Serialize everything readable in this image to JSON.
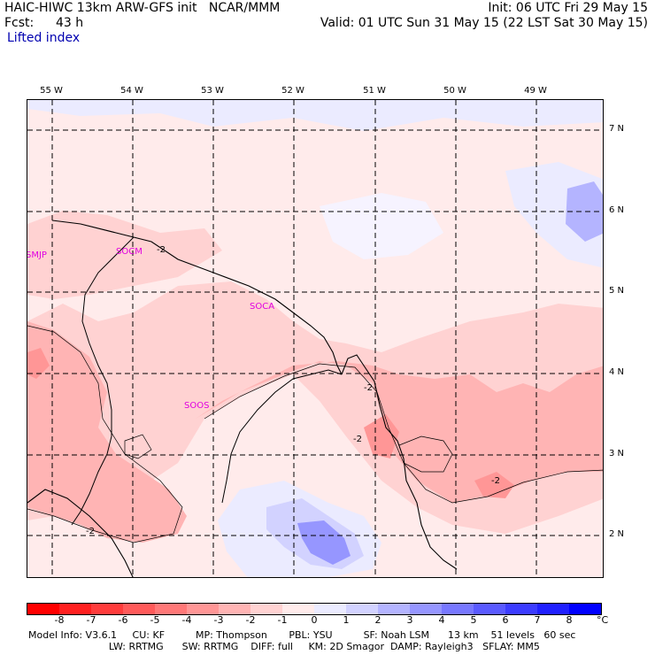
{
  "header": {
    "title": "HAIC-HIWC 13km ARW-GFS init   NCAR/MMM",
    "init": "Init: 06 UTC Fri 29 May 15",
    "fcst_label": "Fcst:",
    "fcst_value": "43 h",
    "valid": "Valid: 01 UTC Sun 31 May 15 (22 LST Sat 30 May 15)",
    "field": "Lifted index"
  },
  "longitude_labels": [
    "55 W",
    "54 W",
    "53 W",
    "52 W",
    "51 W",
    "50 W",
    "49 W"
  ],
  "latitude_labels": [
    "7 N",
    "6 N",
    "5 N",
    "4 N",
    "3 N",
    "2 N"
  ],
  "stations": [
    "SMJP",
    "SOCM",
    "SOCA",
    "SOOS"
  ],
  "contour_labels": [
    "-2",
    "-2",
    "-2",
    "-2",
    "-2"
  ],
  "colorbar": {
    "labels": [
      "-8",
      "-7",
      "-6",
      "-5",
      "-4",
      "-3",
      "-2",
      "-1",
      "0",
      "1",
      "2",
      "3",
      "4",
      "5",
      "6",
      "7",
      "8"
    ],
    "unit": "°C",
    "colors": [
      "#ff0000",
      "#ff2020",
      "#ff3c3c",
      "#ff5a5a",
      "#ff7878",
      "#ff9696",
      "#ffb4b4",
      "#ffd2d2",
      "#ffebeb",
      "#ebebff",
      "#d2d2ff",
      "#b4b4ff",
      "#9696ff",
      "#7878ff",
      "#5a5aff",
      "#3c3cff",
      "#2020ff",
      "#0000ff"
    ]
  },
  "model_info": {
    "line1": "Model Info: V3.6.1     CU: KF          MP: Thompson       PBL: YSU          SF: Noah LSM      13 km    51 levels   60 sec",
    "line2": "                          LW: RRTMG      SW: RRTMG    DIFF: full     KM: 2D Smagor  DAMP: Rayleigh3   SFLAY: MM5"
  }
}
